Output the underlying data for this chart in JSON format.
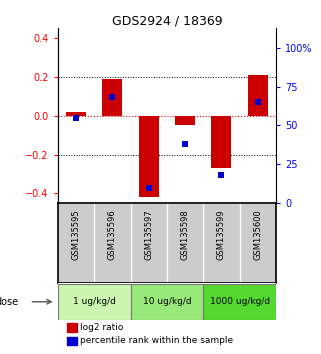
{
  "title": "GDS2924 / 18369",
  "samples": [
    "GSM135595",
    "GSM135596",
    "GSM135597",
    "GSM135598",
    "GSM135599",
    "GSM135600"
  ],
  "log2_ratios": [
    0.02,
    0.19,
    -0.42,
    -0.05,
    -0.27,
    0.21
  ],
  "percentile_ranks": [
    55,
    68,
    10,
    38,
    18,
    65
  ],
  "dose_groups": [
    {
      "label": "1 ug/kg/d",
      "samples": [
        0,
        1
      ],
      "color": "#ccf5b0"
    },
    {
      "label": "10 ug/kg/d",
      "samples": [
        2,
        3
      ],
      "color": "#99e87a"
    },
    {
      "label": "1000 ug/kg/d",
      "samples": [
        4,
        5
      ],
      "color": "#55d930"
    }
  ],
  "bar_color": "#cc0000",
  "dot_color": "#0000cc",
  "ylim_left": [
    -0.45,
    0.45
  ],
  "ylim_right": [
    0,
    112.5
  ],
  "yticks_left": [
    -0.4,
    -0.2,
    0.0,
    0.2,
    0.4
  ],
  "yticks_right": [
    0,
    25,
    50,
    75,
    100
  ],
  "hline_red": 0.0,
  "hlines_dotted": [
    -0.2,
    0.2
  ],
  "background_color": "#ffffff",
  "plot_bg": "#ffffff",
  "sample_bg": "#cccccc",
  "legend_red_label": "log2 ratio",
  "legend_blue_label": "percentile rank within the sample"
}
